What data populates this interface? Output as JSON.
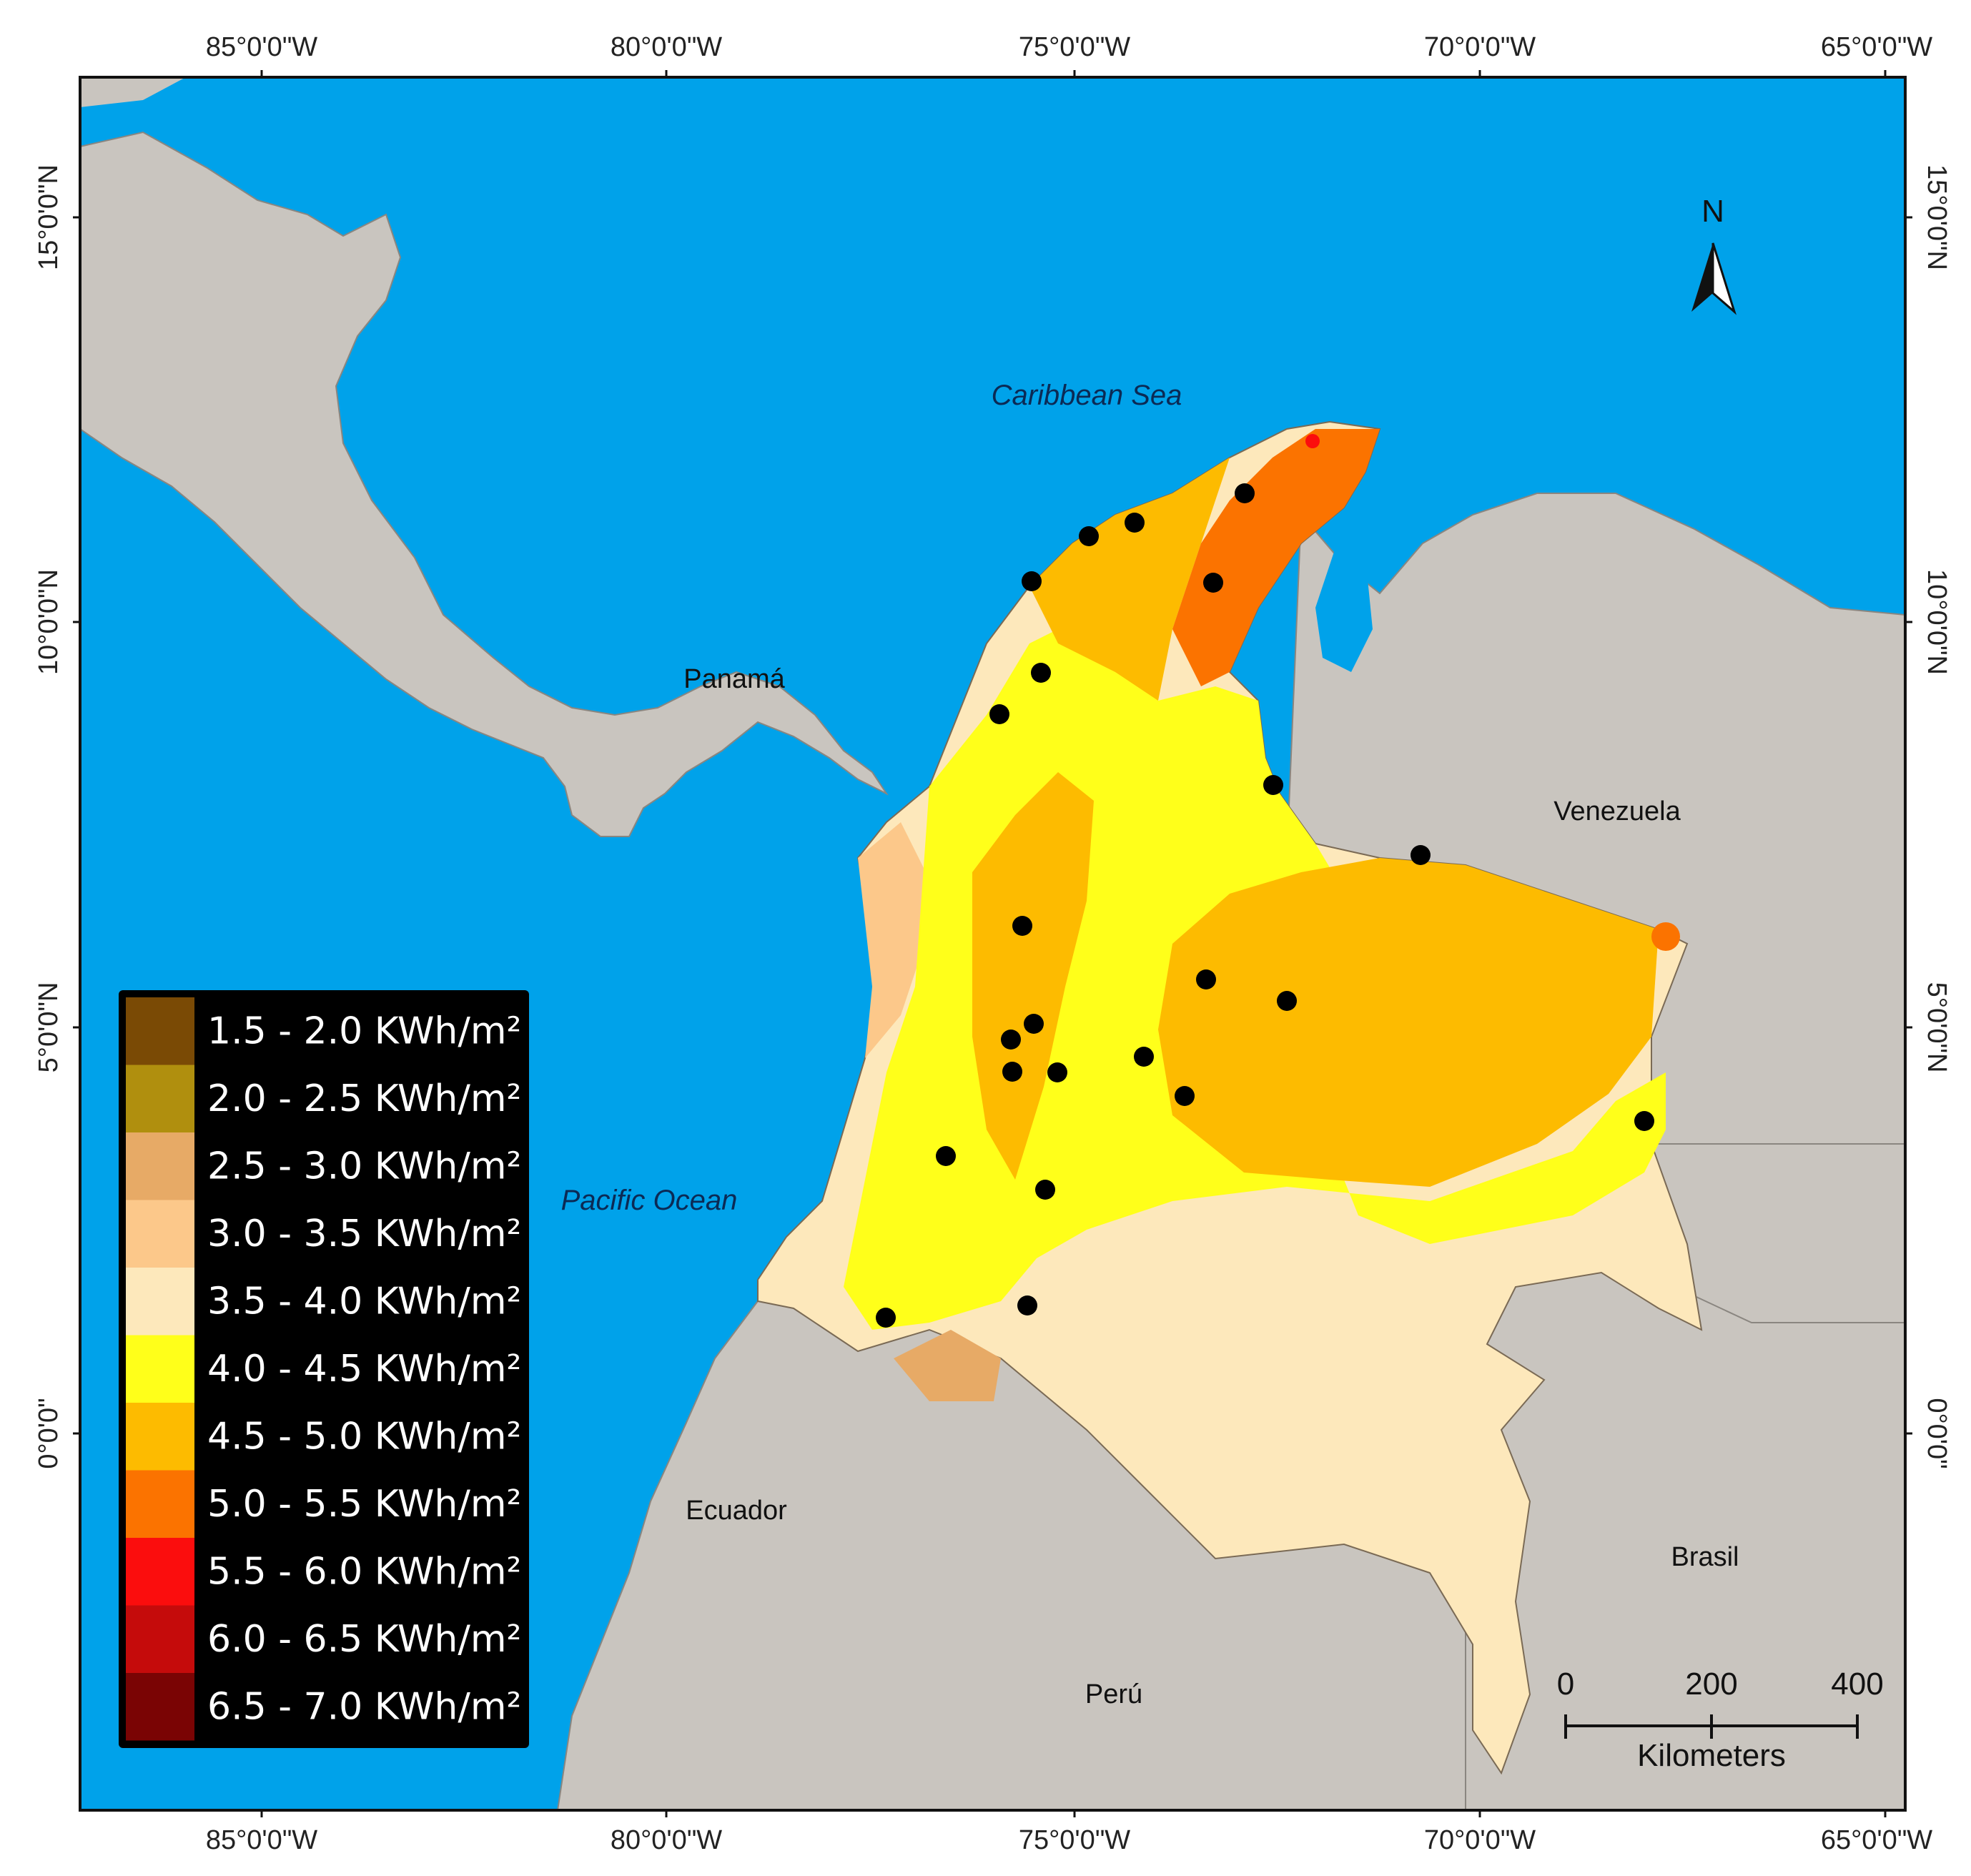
{
  "map": {
    "sea_labels": {
      "caribbean": "Caribbean Sea",
      "pacific": "Pacific Ocean"
    },
    "country_labels": {
      "panama": "Panamá",
      "venezuela": "Venezuela",
      "ecuador": "Ecuador",
      "brasil": "Brasil",
      "peru": "Perú"
    },
    "longitude_labels": [
      "85°0'0\"W",
      "80°0'0\"W",
      "75°0'0\"W",
      "70°0'0\"W",
      "65°0'0\"W"
    ],
    "latitude_labels": [
      "15°0'0\"N",
      "10°0'0\"N",
      "5°0'0\"N",
      "0°0'0\""
    ],
    "north_arrow": {
      "label": "N",
      "icon": "north-arrow-icon"
    },
    "scale_bar": {
      "ticks": [
        "0",
        "200",
        "400"
      ],
      "unit": "Kilometers"
    },
    "colors": {
      "ocean": "#00a2ea",
      "land": "#c9c5bf",
      "class_3_5_4_0": "#fde8bb",
      "class_4_0_4_5": "#ffff1a",
      "class_4_5_5_0": "#fdbb00",
      "class_5_0_5_5": "#fb7300"
    },
    "legend": [
      {
        "label": "1.5 - 2.0 KWh/m²",
        "color": "#7a4a05"
      },
      {
        "label": "2.0 - 2.5 KWh/m²",
        "color": "#b08f0e"
      },
      {
        "label": "2.5 - 3.0 KWh/m²",
        "color": "#e7aa66"
      },
      {
        "label": "3.0 - 3.5 KWh/m²",
        "color": "#fcc88a"
      },
      {
        "label": "3.5 - 4.0 KWh/m²",
        "color": "#fde8bb"
      },
      {
        "label": "4.0 - 4.5 KWh/m²",
        "color": "#ffff1a"
      },
      {
        "label": "4.5 - 5.0 KWh/m²",
        "color": "#fdbb00"
      },
      {
        "label": "5.0 - 5.5 KWh/m²",
        "color": "#fb7300"
      },
      {
        "label": "5.5 - 6.0 KWh/m²",
        "color": "#fb0d0d"
      },
      {
        "label": "6.0 - 6.5 KWh/m²",
        "color": "#c50b0b"
      },
      {
        "label": "6.5 - 7.0 KWh/m²",
        "color": "#7a0404"
      }
    ]
  }
}
